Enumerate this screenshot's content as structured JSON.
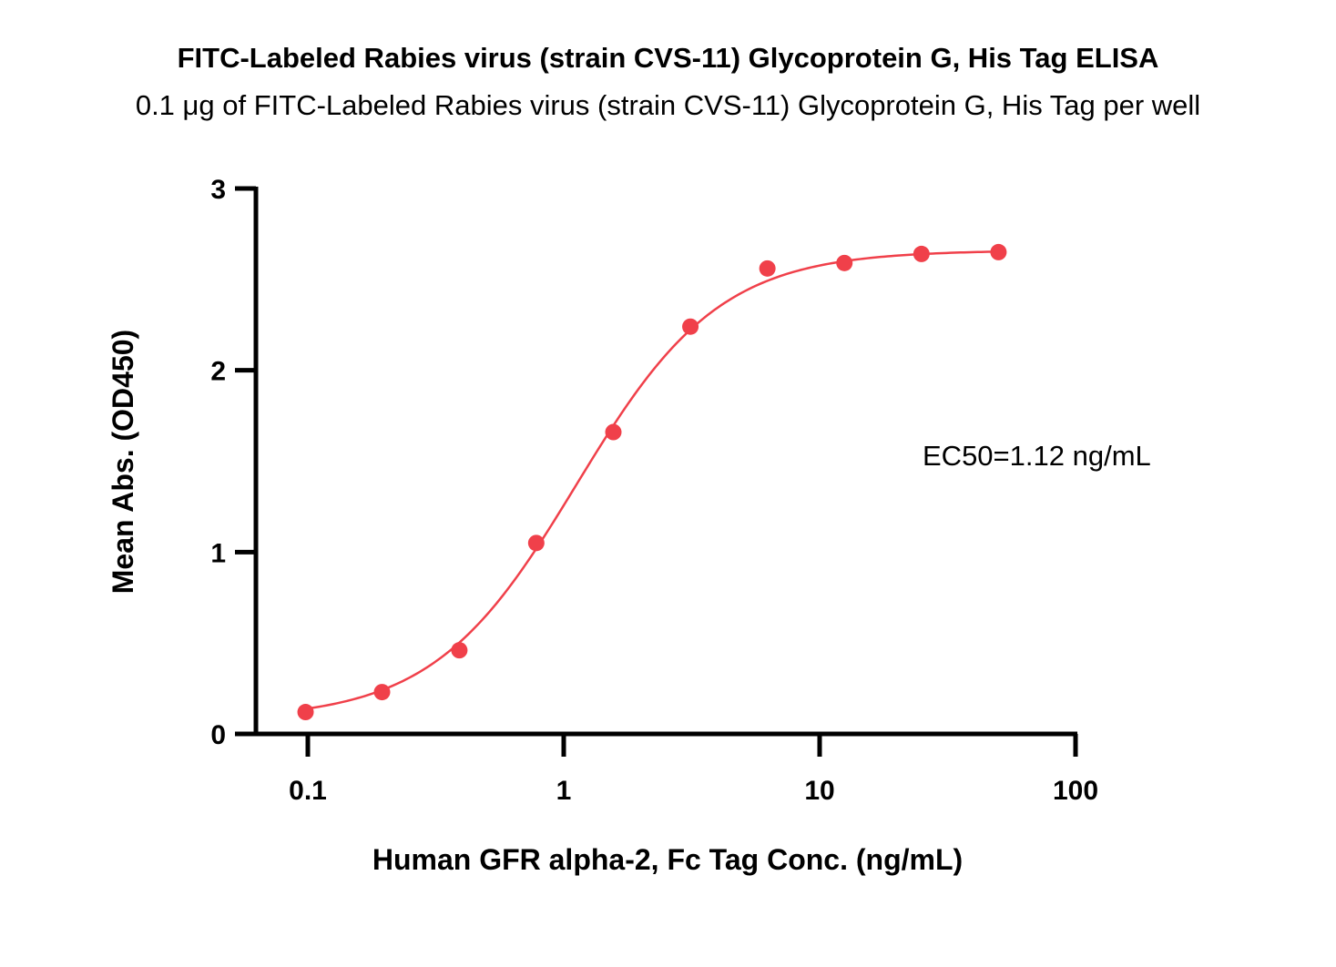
{
  "chart_data": {
    "type": "scatter",
    "title": "FITC-Labeled Rabies virus (strain CVS-11) Glycoprotein G, His Tag ELISA",
    "subtitle": "0.1 μg of FITC-Labeled Rabies virus (strain CVS-11) Glycoprotein G, His Tag per well",
    "xlabel": "Human GFR alpha-2, Fc Tag Conc. (ng/mL)",
    "ylabel": "Mean Abs. (OD450)",
    "xscale": "log",
    "xlim": [
      0.0625,
      100
    ],
    "ylim": [
      0,
      3
    ],
    "x_ticks": [
      0.1,
      1,
      10,
      100
    ],
    "x_tick_labels": [
      "0.1",
      "1",
      "10",
      "100"
    ],
    "y_ticks": [
      0,
      1,
      2,
      3
    ],
    "y_tick_labels": [
      "0",
      "1",
      "2",
      "3"
    ],
    "grid": false,
    "legend": "none",
    "annotation": "EC50=1.12 ng/mL",
    "color": "#f0404a",
    "series": [
      {
        "x": [
          0.098,
          0.195,
          0.391,
          0.781,
          1.563,
          3.125,
          6.25,
          12.5,
          25,
          50
        ],
        "y": [
          0.12,
          0.23,
          0.46,
          1.05,
          1.66,
          2.24,
          2.56,
          2.59,
          2.64,
          2.65
        ],
        "fit": "4PL",
        "fit_params": {
          "bottom": 0.08,
          "top": 2.66,
          "ec50": 1.12,
          "hill": 1.55
        }
      }
    ]
  }
}
